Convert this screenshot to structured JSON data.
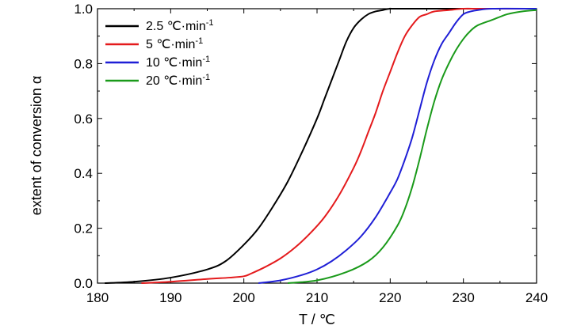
{
  "chart_data": {
    "type": "line",
    "xlabel": "T / ℃",
    "ylabel": "extent of conversion α",
    "xlim": [
      180,
      240
    ],
    "ylim": [
      0.0,
      1.0
    ],
    "xticks": [
      180,
      190,
      200,
      210,
      220,
      230,
      240
    ],
    "yticks": [
      0.0,
      0.2,
      0.4,
      0.6,
      0.8,
      1.0
    ],
    "xtick_labels": [
      "180",
      "190",
      "200",
      "210",
      "220",
      "230",
      "240"
    ],
    "ytick_labels": [
      "0.0",
      "0.2",
      "0.4",
      "0.6",
      "0.8",
      "1.0"
    ],
    "grid": false,
    "legend_position": "top-left",
    "series": [
      {
        "name": "2.5 ℃·min-1",
        "color": "#000000",
        "x": [
          181,
          185,
          190,
          195,
          197.5,
          200,
          202,
          204,
          206,
          208,
          210,
          211,
          212,
          213,
          214,
          215,
          216,
          217,
          218,
          219,
          220,
          222,
          240
        ],
        "y": [
          0.0,
          0.005,
          0.02,
          0.05,
          0.08,
          0.14,
          0.2,
          0.28,
          0.37,
          0.48,
          0.6,
          0.67,
          0.74,
          0.81,
          0.88,
          0.93,
          0.96,
          0.98,
          0.99,
          0.995,
          1.0,
          1.0,
          1.0
        ]
      },
      {
        "name": "5 ℃·min-1",
        "color": "#e41a1c",
        "x": [
          186,
          190,
          195,
          198,
          200,
          201,
          203,
          205,
          207,
          209,
          211,
          213,
          215,
          216,
          217,
          218,
          219,
          220,
          221,
          222,
          223,
          224,
          225,
          226,
          228,
          230,
          232,
          240
        ],
        "y": [
          0.0,
          0.005,
          0.015,
          0.02,
          0.025,
          0.035,
          0.06,
          0.09,
          0.13,
          0.18,
          0.24,
          0.32,
          0.42,
          0.48,
          0.55,
          0.62,
          0.7,
          0.77,
          0.84,
          0.9,
          0.94,
          0.97,
          0.98,
          0.99,
          0.995,
          1.0,
          1.0,
          1.0
        ]
      },
      {
        "name": "10 ℃·min-1",
        "color": "#1f1fd6",
        "x": [
          202,
          205,
          208,
          210,
          212,
          214,
          216,
          218,
          220,
          221,
          222,
          223,
          224,
          225,
          226,
          227,
          228,
          229,
          230,
          231,
          232,
          234,
          240
        ],
        "y": [
          0.0,
          0.01,
          0.03,
          0.05,
          0.08,
          0.12,
          0.17,
          0.24,
          0.33,
          0.38,
          0.45,
          0.53,
          0.63,
          0.73,
          0.81,
          0.87,
          0.91,
          0.95,
          0.98,
          0.99,
          0.995,
          1.0,
          1.0
        ]
      },
      {
        "name": "20 ℃·min-1",
        "color": "#1a9a1a",
        "x": [
          206,
          210,
          214,
          217,
          219,
          221,
          222,
          223,
          224,
          225,
          226,
          227,
          228,
          229,
          230,
          231,
          232,
          234,
          236,
          238,
          240
        ],
        "y": [
          0.0,
          0.01,
          0.04,
          0.08,
          0.13,
          0.21,
          0.27,
          0.35,
          0.45,
          0.56,
          0.66,
          0.74,
          0.8,
          0.85,
          0.89,
          0.92,
          0.94,
          0.96,
          0.98,
          0.99,
          0.995
        ]
      }
    ]
  }
}
